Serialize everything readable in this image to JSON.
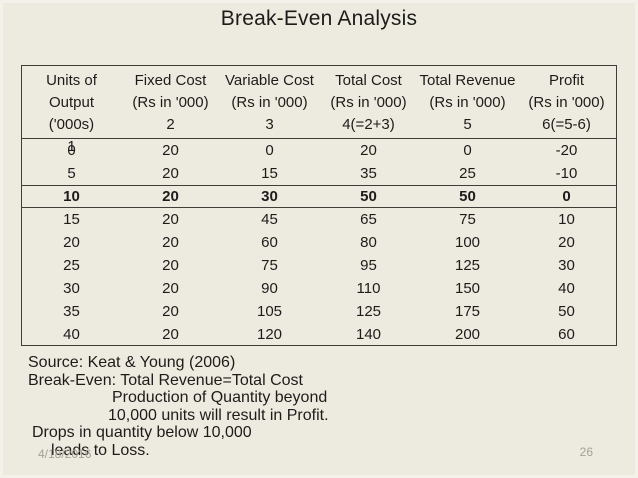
{
  "slide": {
    "title": "Break-Even Analysis",
    "footer": {
      "date": "4/18/2016",
      "page": "26"
    }
  },
  "table": {
    "columns": [
      {
        "label": "Units of Output",
        "unit": "('000s)",
        "num": "1"
      },
      {
        "label": "Fixed Cost",
        "unit": "(Rs in '000)",
        "num": "2"
      },
      {
        "label": "Variable Cost",
        "unit": "(Rs in '000)",
        "num": "3"
      },
      {
        "label": "Total Cost",
        "unit": "(Rs in '000)",
        "num": "4(=2+3)"
      },
      {
        "label": "Total Revenue",
        "unit": "(Rs in '000)",
        "num": "5"
      },
      {
        "label": "Profit",
        "unit": "(Rs in '000)",
        "num": "6(=5-6)"
      }
    ],
    "rows": [
      {
        "cells": [
          "0",
          "20",
          "0",
          "20",
          "0",
          "-20"
        ],
        "breakeven": false
      },
      {
        "cells": [
          "5",
          "20",
          "15",
          "35",
          "25",
          "-10"
        ],
        "breakeven": false
      },
      {
        "cells": [
          "10",
          "20",
          "30",
          "50",
          "50",
          "0"
        ],
        "breakeven": true
      },
      {
        "cells": [
          "15",
          "20",
          "45",
          "65",
          "75",
          "10"
        ],
        "breakeven": false
      },
      {
        "cells": [
          "20",
          "20",
          "60",
          "80",
          "100",
          "20"
        ],
        "breakeven": false
      },
      {
        "cells": [
          "25",
          "20",
          "75",
          "95",
          "125",
          "30"
        ],
        "breakeven": false
      },
      {
        "cells": [
          "30",
          "20",
          "90",
          "110",
          "150",
          "40"
        ],
        "breakeven": false
      },
      {
        "cells": [
          "35",
          "20",
          "105",
          "125",
          "175",
          "50"
        ],
        "breakeven": false
      },
      {
        "cells": [
          "40",
          "20",
          "120",
          "140",
          "200",
          "60"
        ],
        "breakeven": false
      }
    ]
  },
  "notes": {
    "lines": [
      "Source: Keat & Young (2006)",
      "Break-Even: Total Revenue=Total Cost",
      "Production of Quantity beyond",
      "10,000 units will result in Profit.",
      "Drops in quantity below 10,000",
      "leads to Loss."
    ]
  },
  "colors": {
    "background": "#edeadf",
    "table_border": "#3f3e38",
    "text": "#1d1c1a",
    "footer_text": "#a3a296"
  }
}
